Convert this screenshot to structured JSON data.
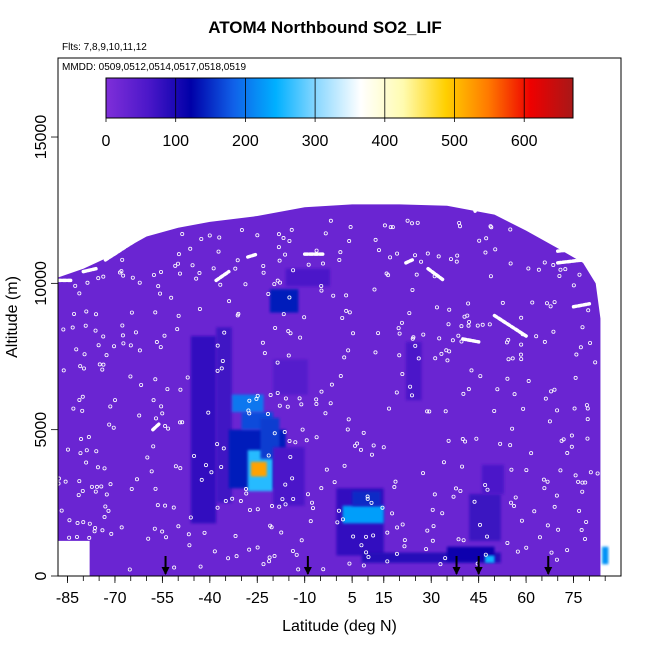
{
  "chart_data": {
    "type": "heatmap",
    "title": "ATOM4 Northbound SO2_LIF",
    "flights_note": "Flts: 7,8,9,10,11,12",
    "dates_note": "MMDD: 0509,0512,0514,0517,0518,0519",
    "xlabel": "Latitude (deg N)",
    "ylabel": "Altitude (m)",
    "xlim": [
      -88,
      90
    ],
    "ylim": [
      0,
      17700
    ],
    "x_ticks": [
      -85,
      -70,
      -55,
      -40,
      -25,
      -10,
      5,
      15,
      30,
      45,
      60,
      75
    ],
    "y_ticks": [
      0,
      5000,
      10000,
      15000
    ],
    "colorbar": {
      "ticks": [
        0,
        100,
        200,
        300,
        400,
        500,
        600
      ],
      "range": [
        0,
        670
      ],
      "colors": [
        "#7f2fd9",
        "#4b17c9",
        "#0000a8",
        "#1060e8",
        "#00b0ff",
        "#8fd9ff",
        "#ffffff",
        "#fffbb0",
        "#ffd000",
        "#ff7a00",
        "#ee0000",
        "#a81818"
      ]
    },
    "background_level": 25,
    "coverage_top": [
      {
        "lat": -88,
        "alt": 10200
      },
      {
        "lat": -80,
        "alt": 10500
      },
      {
        "lat": -70,
        "alt": 11000
      },
      {
        "lat": -60,
        "alt": 11600
      },
      {
        "lat": -50,
        "alt": 11900
      },
      {
        "lat": -40,
        "alt": 12100
      },
      {
        "lat": -25,
        "alt": 12300
      },
      {
        "lat": -10,
        "alt": 12600
      },
      {
        "lat": 5,
        "alt": 12700
      },
      {
        "lat": 20,
        "alt": 12700
      },
      {
        "lat": 35,
        "alt": 12650
      },
      {
        "lat": 50,
        "alt": 12350
      },
      {
        "lat": 60,
        "alt": 11800
      },
      {
        "lat": 70,
        "alt": 11200
      },
      {
        "lat": 78,
        "alt": 10700
      },
      {
        "lat": 82,
        "alt": 10000
      },
      {
        "lat": 83.5,
        "alt": 8800
      }
    ],
    "high_so2_regions": [
      {
        "lat_min": -46,
        "lat_max": -38,
        "alt_min": 1800,
        "alt_max": 8200,
        "value": 80
      },
      {
        "lat_min": -38,
        "lat_max": -33,
        "alt_min": 2500,
        "alt_max": 8500,
        "value": 70
      },
      {
        "lat_min": -34,
        "lat_max": -16,
        "alt_min": 3000,
        "alt_max": 5000,
        "value": 140
      },
      {
        "lat_min": -30,
        "alt_min": 5000,
        "lat_max": -20,
        "alt_max": 5600,
        "value": 170
      },
      {
        "lat_min": -28,
        "lat_max": -20,
        "alt_min": 2900,
        "alt_max": 4300,
        "value": 260
      },
      {
        "lat_min": -27,
        "lat_max": -22,
        "alt_min": 3400,
        "alt_max": 3900,
        "value": 520
      },
      {
        "lat_min": -33,
        "lat_max": -23,
        "alt_min": 5600,
        "alt_max": 6200,
        "value": 200
      },
      {
        "lat_min": -24,
        "lat_max": -18,
        "alt_min": 4000,
        "alt_max": 5400,
        "value": 160
      },
      {
        "lat_min": -20,
        "lat_max": -10,
        "alt_min": 2400,
        "alt_max": 4400,
        "value": 60
      },
      {
        "lat_min": -20,
        "lat_max": -9,
        "alt_min": 6200,
        "alt_max": 7400,
        "value": 50
      },
      {
        "lat_min": -21,
        "lat_max": -12,
        "alt_min": 9000,
        "alt_max": 9800,
        "value": 140
      },
      {
        "lat_min": -16,
        "lat_max": -2,
        "alt_min": 9900,
        "alt_max": 10500,
        "value": 60
      },
      {
        "lat_min": 0,
        "lat_max": 15,
        "alt_min": 700,
        "alt_max": 3000,
        "value": 80
      },
      {
        "lat_min": 2,
        "lat_max": 15,
        "alt_min": 1800,
        "alt_max": 2400,
        "value": 230
      },
      {
        "lat_min": 5,
        "lat_max": 14,
        "alt_min": 2400,
        "alt_max": 2900,
        "value": 150
      },
      {
        "lat_min": 8,
        "lat_max": 52,
        "alt_min": 450,
        "alt_max": 800,
        "value": 90
      },
      {
        "lat_min": 35,
        "lat_max": 50,
        "alt_min": 500,
        "alt_max": 1000,
        "value": 110
      },
      {
        "lat_min": 47,
        "lat_max": 50,
        "alt_min": 450,
        "alt_max": 700,
        "value": 250
      },
      {
        "lat_min": 42,
        "lat_max": 52,
        "alt_min": 1200,
        "alt_max": 2800,
        "value": 75
      },
      {
        "lat_min": 46,
        "lat_max": 53,
        "alt_min": 2800,
        "alt_max": 3800,
        "value": 60
      },
      {
        "lat_min": 22,
        "lat_max": 27,
        "alt_min": 6000,
        "alt_max": 8000,
        "value": 60
      },
      {
        "lat_min": 84,
        "lat_max": 86,
        "alt_min": 400,
        "alt_max": 1000,
        "value": 220
      }
    ],
    "aircraft_tracks": [
      [
        [
          -88,
          10100
        ],
        [
          -84,
          10100
        ]
      ],
      [
        [
          -80,
          10400
        ],
        [
          -76,
          10500
        ]
      ],
      [
        [
          -73,
          10800
        ],
        [
          -63,
          11500
        ]
      ],
      [
        [
          -50,
          12200
        ],
        [
          -48,
          12300
        ]
      ],
      [
        [
          -38,
          10100
        ],
        [
          -34,
          10400
        ]
      ],
      [
        [
          -28,
          10900
        ],
        [
          -25,
          11000
        ]
      ],
      [
        [
          -10,
          11000
        ],
        [
          -4,
          11000
        ]
      ],
      [
        [
          22,
          10700
        ],
        [
          24,
          10800
        ]
      ],
      [
        [
          29,
          10500
        ],
        [
          34,
          10100
        ]
      ],
      [
        [
          43,
          12900
        ],
        [
          44,
          12400
        ]
      ],
      [
        [
          50,
          8900
        ],
        [
          60,
          8200
        ]
      ],
      [
        [
          70,
          11100
        ],
        [
          78,
          11200
        ]
      ],
      [
        [
          70,
          10700
        ],
        [
          78,
          10800
        ]
      ],
      [
        [
          75,
          9200
        ],
        [
          80,
          9300
        ]
      ],
      [
        [
          -58,
          5000
        ],
        [
          -56,
          5200
        ]
      ],
      [
        [
          40,
          8100
        ],
        [
          45,
          8000
        ]
      ]
    ],
    "profile_arrows": [
      -54,
      -9,
      38,
      45,
      67
    ]
  }
}
